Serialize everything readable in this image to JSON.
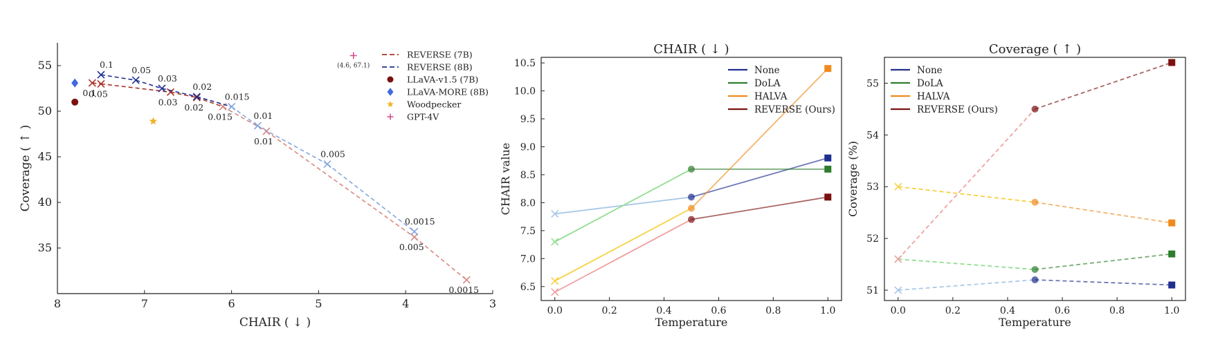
{
  "colors": {
    "reverse7b": "#a93226",
    "reverse7b_light": "#d98880",
    "reverse8b": "#1f2f8f",
    "reverse8b_light": "#85a6dc",
    "llava15": "#7b1010",
    "llavamore": "#4169e1",
    "woodpecker": "#f0b429",
    "gpt4v": "#d6478a",
    "none": "#1f2f8f",
    "none_light": "#a9c8e8",
    "dola": "#2d7d2d",
    "dola_light": "#90dd90",
    "halva": "#f08a1c",
    "halva_light": "#f8d040",
    "rev": "#7b1010",
    "rev_light": "#f0a0a0"
  },
  "chart_data": [
    {
      "type": "scatter",
      "title": "",
      "xlabel": "CHAIR ( ↓ )",
      "ylabel": "Coverage ( ↑ )",
      "xlim": [
        8,
        3
      ],
      "ylim": [
        30,
        57.5
      ],
      "x_ticks": [
        "8",
        "7",
        "6",
        "5",
        "4",
        "3"
      ],
      "x_tick_values": [
        8,
        7,
        6,
        5,
        4,
        3
      ],
      "y_ticks": [
        "35",
        "40",
        "45",
        "50",
        "55"
      ],
      "y_tick_values": [
        35,
        40,
        45,
        50,
        55
      ],
      "series": [
        {
          "name": "REVERSE (7B)",
          "style": "dashed-line-x",
          "color_key": "reverse7b",
          "points": [
            {
              "x": 7.6,
              "y": 53.1,
              "label": "0.1"
            },
            {
              "x": 7.5,
              "y": 53.0,
              "label": "0.05"
            },
            {
              "x": 6.7,
              "y": 52.1,
              "label": "0.03"
            },
            {
              "x": 6.4,
              "y": 51.5,
              "label": "0.02"
            },
            {
              "x": 6.1,
              "y": 50.5,
              "label": "0.015"
            },
            {
              "x": 5.6,
              "y": 47.8,
              "label": "0.01"
            },
            {
              "x": 3.9,
              "y": 36.2,
              "label": "0.005"
            },
            {
              "x": 3.3,
              "y": 31.5,
              "label": "0.0015"
            }
          ]
        },
        {
          "name": "REVERSE (8B)",
          "style": "dashed-line-x",
          "color_key": "reverse8b",
          "points": [
            {
              "x": 7.5,
              "y": 54.0,
              "label": "0.1"
            },
            {
              "x": 7.1,
              "y": 53.4,
              "label": "0.05"
            },
            {
              "x": 6.8,
              "y": 52.5,
              "label": "0.03"
            },
            {
              "x": 6.4,
              "y": 51.6,
              "label": "0.02"
            },
            {
              "x": 6.0,
              "y": 50.5,
              "label": "0.015"
            },
            {
              "x": 5.7,
              "y": 48.4,
              "label": "0.01"
            },
            {
              "x": 4.9,
              "y": 44.2,
              "label": "0.005"
            },
            {
              "x": 3.9,
              "y": 36.8,
              "label": "0.0015"
            }
          ]
        },
        {
          "name": "LLaVA-v1.5 (7B)",
          "style": "circle",
          "color_key": "llava15",
          "points": [
            {
              "x": 7.8,
              "y": 51.0
            }
          ]
        },
        {
          "name": "LLaVA-MORE (8B)",
          "style": "diamond",
          "color_key": "llavamore",
          "points": [
            {
              "x": 7.8,
              "y": 53.1
            }
          ]
        },
        {
          "name": "Woodpecker",
          "style": "star",
          "color_key": "woodpecker",
          "points": [
            {
              "x": 6.9,
              "y": 48.9
            }
          ]
        },
        {
          "name": "GPT-4V",
          "style": "plus",
          "color_key": "gpt4v",
          "points": [
            {
              "x": 4.6,
              "y": 56.1
            }
          ],
          "annotation": "(4.6, 67.1)"
        }
      ],
      "legend_position": "top-right"
    },
    {
      "type": "line",
      "title": "CHAIR ( ↓ )",
      "xlabel": "Temperature",
      "ylabel": "CHAIR value",
      "xlim": [
        -0.05,
        1.05
      ],
      "ylim": [
        10.6,
        6.25
      ],
      "x": [
        0.0,
        0.5,
        1.0
      ],
      "x_ticks": [
        "0.0",
        "0.2",
        "0.4",
        "0.6",
        "0.8",
        "1.0"
      ],
      "x_tick_values": [
        0.0,
        0.2,
        0.4,
        0.6,
        0.8,
        1.0
      ],
      "y_ticks": [
        "6.5",
        "7.0",
        "7.5",
        "8.0",
        "8.5",
        "9.0",
        "9.5",
        "10.0",
        "10.5"
      ],
      "y_tick_values": [
        6.5,
        7.0,
        7.5,
        8.0,
        8.5,
        9.0,
        9.5,
        10.0,
        10.5
      ],
      "series": [
        {
          "name": "None",
          "key": "none",
          "values": [
            7.8,
            8.1,
            8.8
          ]
        },
        {
          "name": "DoLA",
          "key": "dola",
          "values": [
            7.3,
            8.6,
            8.6
          ]
        },
        {
          "name": "HALVA",
          "key": "halva",
          "values": [
            6.6,
            7.9,
            10.4
          ]
        },
        {
          "name": "REVERSE (Ours)",
          "key": "rev",
          "values": [
            6.4,
            7.7,
            8.1
          ]
        }
      ],
      "line_style": "solid",
      "legend_position": "top-right"
    },
    {
      "type": "line",
      "title": "Coverage ( ↑ )",
      "xlabel": "Temperature",
      "ylabel": "Coverage (%)",
      "xlim": [
        -0.05,
        1.05
      ],
      "ylim": [
        50.8,
        55.5
      ],
      "x": [
        0.0,
        0.5,
        1.0
      ],
      "x_ticks": [
        "0.0",
        "0.2",
        "0.4",
        "0.6",
        "0.8",
        "1.0"
      ],
      "x_tick_values": [
        0.0,
        0.2,
        0.4,
        0.6,
        0.8,
        1.0
      ],
      "y_ticks": [
        "51",
        "52",
        "53",
        "54",
        "55"
      ],
      "y_tick_values": [
        51,
        52,
        53,
        54,
        55
      ],
      "series": [
        {
          "name": "None",
          "key": "none",
          "values": [
            51.0,
            51.2,
            51.1
          ]
        },
        {
          "name": "DoLA",
          "key": "dola",
          "values": [
            51.6,
            51.4,
            51.7
          ]
        },
        {
          "name": "HALVA",
          "key": "halva",
          "values": [
            53.0,
            52.7,
            52.3
          ]
        },
        {
          "name": "REVERSE (Ours)",
          "key": "rev",
          "values": [
            51.6,
            54.5,
            55.4
          ]
        }
      ],
      "line_style": "dashed",
      "legend_position": "top-left"
    }
  ]
}
